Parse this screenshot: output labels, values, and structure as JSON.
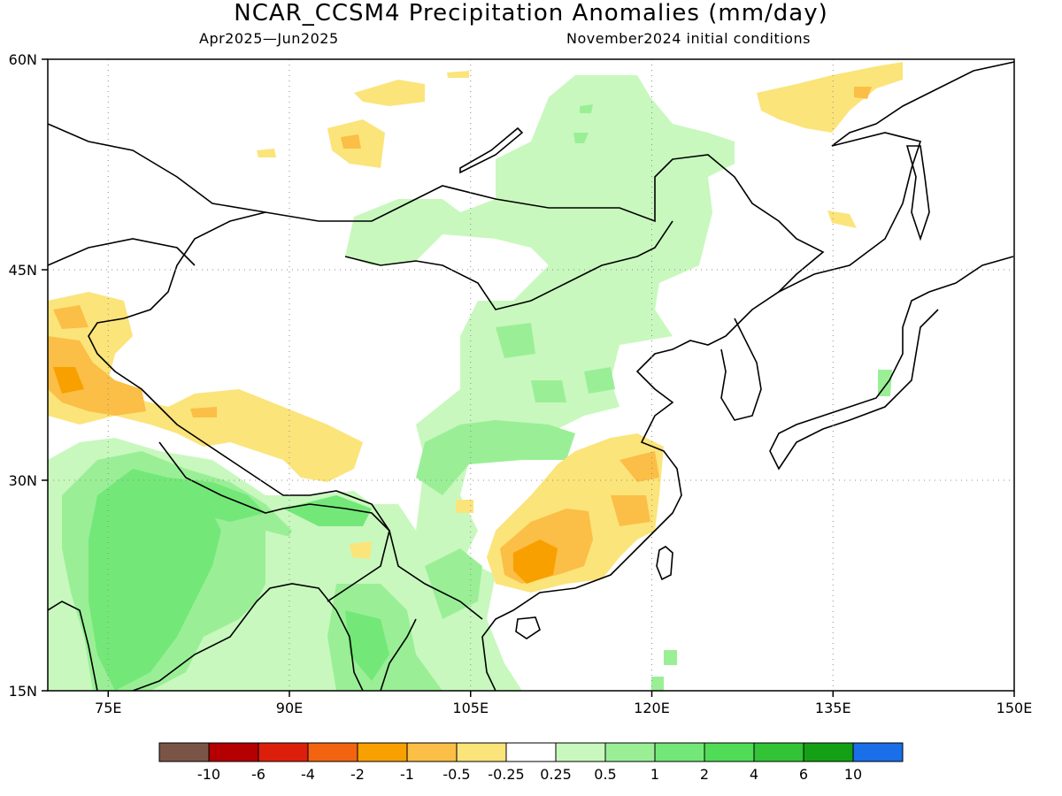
{
  "title": "NCAR_CCSM4 Precipitation Anomalies (mm/day)",
  "subtitle_left": "Apr2025—Jun2025",
  "subtitle_right": "November2024 initial conditions",
  "map": {
    "lon_range": [
      70,
      150
    ],
    "lat_range": [
      15,
      60
    ],
    "lon_ticks": [
      "75E",
      "90E",
      "105E",
      "120E",
      "135E",
      "150E"
    ],
    "lat_ticks": [
      "60N",
      "45N",
      "30N",
      "15N"
    ],
    "gridlines": "dotted"
  },
  "legend": {
    "colors": [
      "#7b5448",
      "#b40000",
      "#dc1f0a",
      "#f26410",
      "#f7a000",
      "#fbbe46",
      "#fbe47a",
      "#ffffff",
      "#c8f8be",
      "#9aef96",
      "#73e878",
      "#50dc56",
      "#32c337",
      "#14a014",
      "#1a6ee8"
    ],
    "labels": [
      "-10",
      "-6",
      "-4",
      "-2",
      "-1",
      "-0.5",
      "-0.25",
      "0.25",
      "0.5",
      "1",
      "2",
      "4",
      "6",
      "10"
    ]
  }
}
